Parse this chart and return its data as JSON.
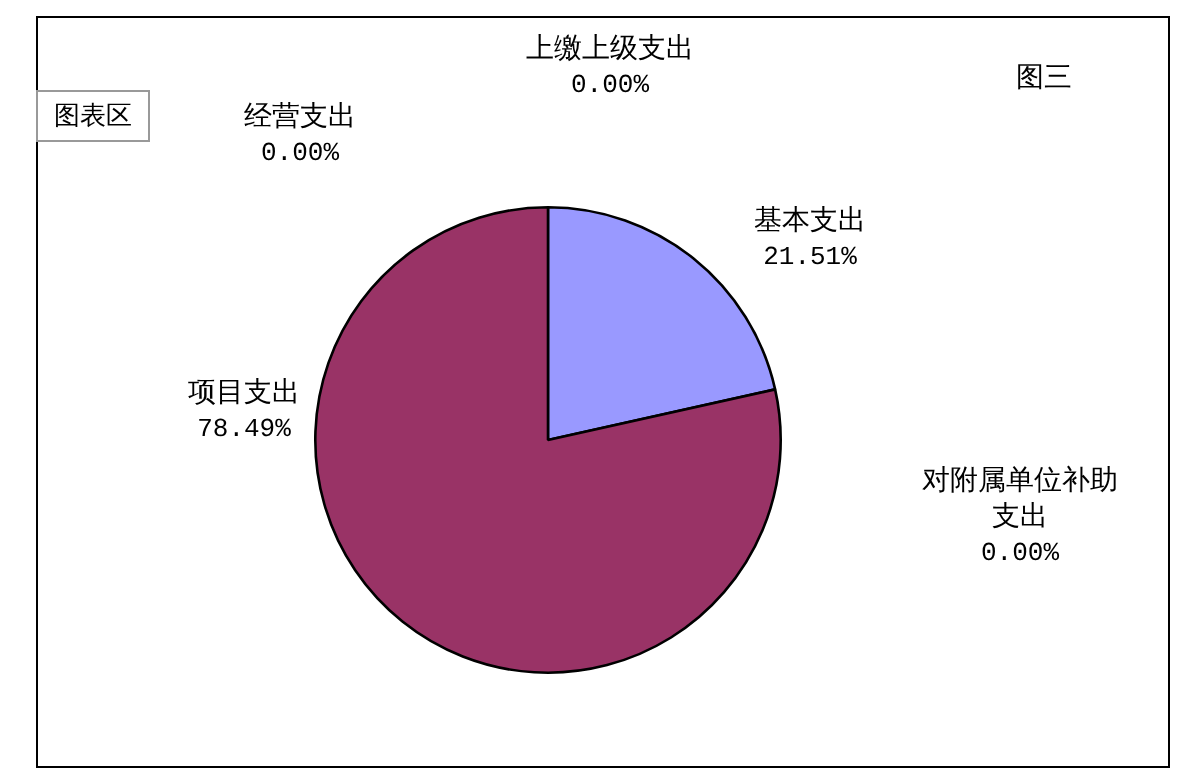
{
  "chart_data": {
    "type": "pie",
    "title": "图三",
    "categories": [
      "基本支出",
      "对附属单位补助支出",
      "项目支出",
      "经营支出",
      "上缴上级支出"
    ],
    "values": [
      21.51,
      0,
      78.49,
      0,
      0
    ],
    "colors": [
      "#9999ff",
      "#ffffcc",
      "#993366",
      "#ccffff",
      "#660066"
    ],
    "value_labels": [
      "21.51%",
      "0.00%",
      "78.49%",
      "0.00%",
      "0.00%"
    ],
    "annotations": [
      "图表区"
    ],
    "legend": false
  }
}
